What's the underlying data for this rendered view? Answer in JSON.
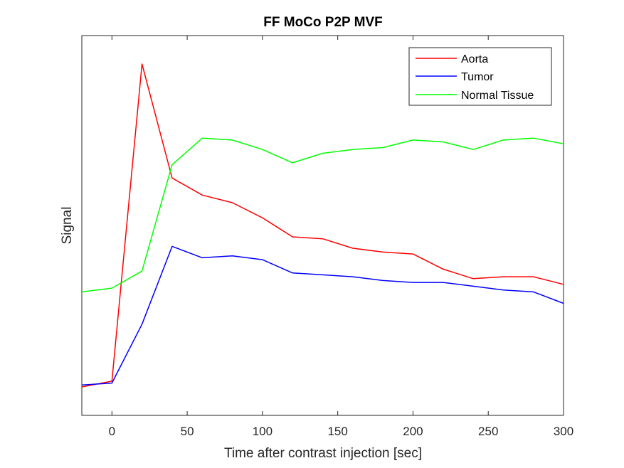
{
  "chart_data": {
    "type": "line",
    "title": "FF MoCo P2P MVF",
    "xlabel": "Time after contrast injection [sec]",
    "ylabel": "Signal",
    "xlim": [
      -20,
      300
    ],
    "ylim": [
      0,
      100
    ],
    "x_ticks": [
      0,
      50,
      100,
      150,
      200,
      250,
      300
    ],
    "x_tick_labels": [
      "0",
      "50",
      "100",
      "150",
      "200",
      "250",
      "300"
    ],
    "y_ticks": [],
    "grid": false,
    "legend_position": "top-right",
    "x": [
      -20,
      0,
      20,
      40,
      60,
      80,
      100,
      120,
      140,
      160,
      180,
      200,
      220,
      240,
      260,
      280,
      300
    ],
    "series": [
      {
        "name": "Aorta",
        "color": "#ff0000",
        "values": [
          7.5,
          9.0,
          92.5,
          62.5,
          58.0,
          56.0,
          52.0,
          47.0,
          46.5,
          44.0,
          43.0,
          42.5,
          38.5,
          36.0,
          36.5,
          36.5,
          34.5
        ]
      },
      {
        "name": "Tumor",
        "color": "#0000ff",
        "values": [
          8.0,
          8.5,
          24.0,
          44.5,
          41.5,
          42.0,
          41.0,
          37.5,
          37.0,
          36.5,
          35.5,
          35.0,
          35.0,
          34.0,
          33.0,
          32.5,
          29.5
        ]
      },
      {
        "name": "Normal Tissue",
        "color": "#00ff00",
        "values": [
          32.5,
          33.5,
          38.0,
          66.0,
          73.0,
          72.5,
          70.0,
          66.5,
          69.0,
          70.0,
          70.5,
          72.5,
          72.0,
          70.0,
          72.5,
          73.0,
          71.5
        ]
      }
    ]
  }
}
